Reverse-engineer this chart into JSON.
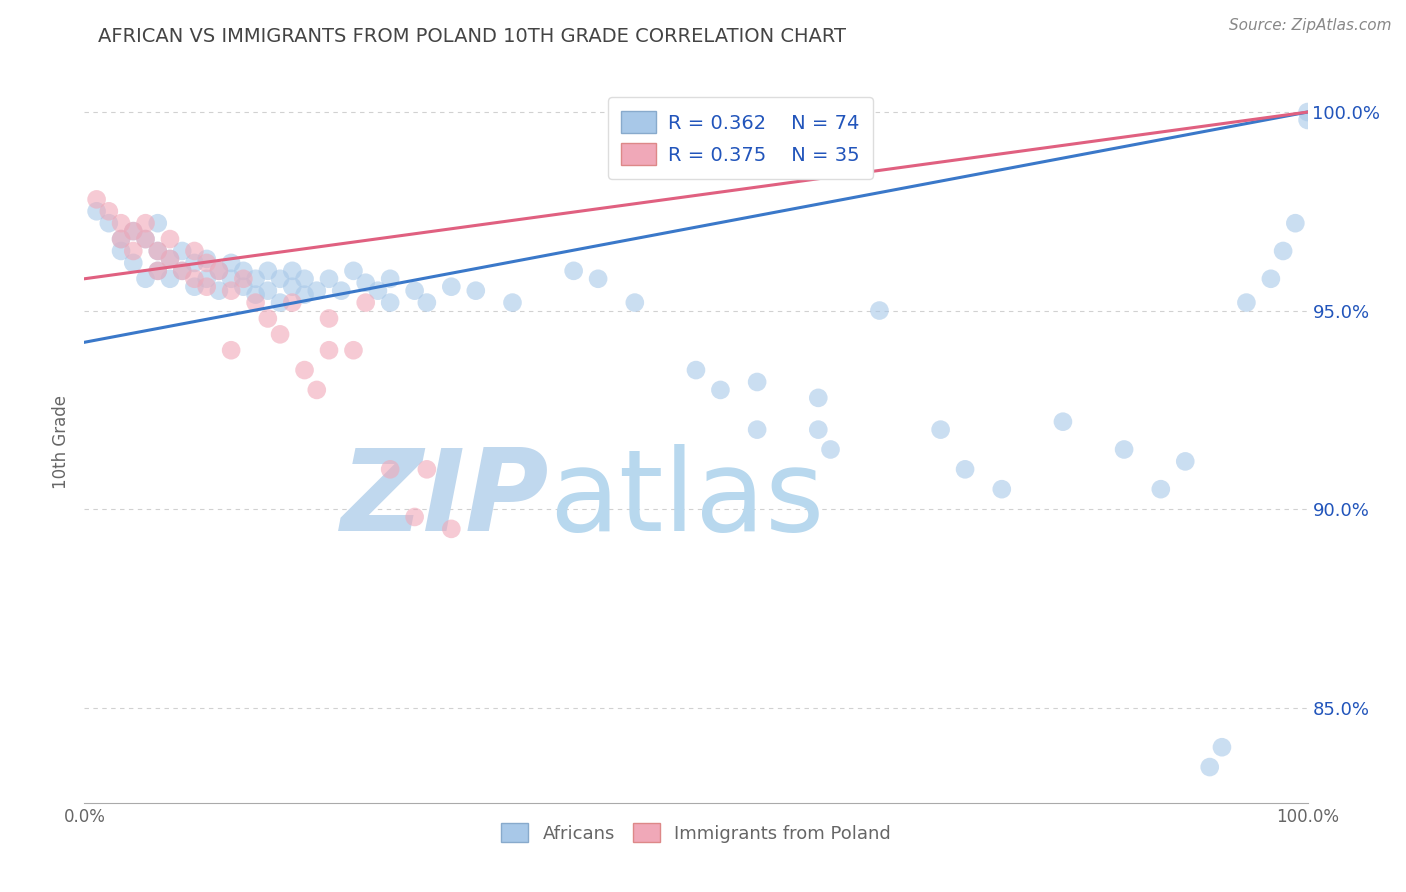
{
  "title": "AFRICAN VS IMMIGRANTS FROM POLAND 10TH GRADE CORRELATION CHART",
  "source": "Source: ZipAtlas.com",
  "ylabel": "10th Grade",
  "watermark_zip": "ZIP",
  "watermark_atlas": "atlas",
  "legend_blue_r": "R = 0.362",
  "legend_blue_n": "N = 74",
  "legend_pink_r": "R = 0.375",
  "legend_pink_n": "N = 35",
  "xlim": [
    0.0,
    1.0
  ],
  "ylim": [
    0.826,
    1.008
  ],
  "yticks": [
    0.85,
    0.9,
    0.95,
    1.0
  ],
  "ytick_labels": [
    "85.0%",
    "90.0%",
    "95.0%",
    "100.0%"
  ],
  "xtick_labels": [
    "0.0%",
    "100.0%"
  ],
  "blue_scatter": [
    [
      0.01,
      0.975
    ],
    [
      0.02,
      0.972
    ],
    [
      0.03,
      0.968
    ],
    [
      0.03,
      0.965
    ],
    [
      0.04,
      0.97
    ],
    [
      0.04,
      0.962
    ],
    [
      0.05,
      0.968
    ],
    [
      0.05,
      0.958
    ],
    [
      0.06,
      0.965
    ],
    [
      0.06,
      0.96
    ],
    [
      0.06,
      0.972
    ],
    [
      0.07,
      0.963
    ],
    [
      0.07,
      0.958
    ],
    [
      0.08,
      0.965
    ],
    [
      0.08,
      0.96
    ],
    [
      0.09,
      0.962
    ],
    [
      0.09,
      0.956
    ],
    [
      0.1,
      0.963
    ],
    [
      0.1,
      0.958
    ],
    [
      0.11,
      0.96
    ],
    [
      0.11,
      0.955
    ],
    [
      0.12,
      0.962
    ],
    [
      0.12,
      0.958
    ],
    [
      0.13,
      0.96
    ],
    [
      0.13,
      0.956
    ],
    [
      0.14,
      0.958
    ],
    [
      0.14,
      0.954
    ],
    [
      0.15,
      0.96
    ],
    [
      0.15,
      0.955
    ],
    [
      0.16,
      0.958
    ],
    [
      0.16,
      0.952
    ],
    [
      0.17,
      0.96
    ],
    [
      0.17,
      0.956
    ],
    [
      0.18,
      0.958
    ],
    [
      0.18,
      0.954
    ],
    [
      0.19,
      0.955
    ],
    [
      0.2,
      0.958
    ],
    [
      0.21,
      0.955
    ],
    [
      0.22,
      0.96
    ],
    [
      0.23,
      0.957
    ],
    [
      0.24,
      0.955
    ],
    [
      0.25,
      0.958
    ],
    [
      0.25,
      0.952
    ],
    [
      0.27,
      0.955
    ],
    [
      0.28,
      0.952
    ],
    [
      0.3,
      0.956
    ],
    [
      0.32,
      0.955
    ],
    [
      0.35,
      0.952
    ],
    [
      0.4,
      0.96
    ],
    [
      0.42,
      0.958
    ],
    [
      0.45,
      0.952
    ],
    [
      0.5,
      0.935
    ],
    [
      0.52,
      0.93
    ],
    [
      0.55,
      0.92
    ],
    [
      0.55,
      0.932
    ],
    [
      0.6,
      0.92
    ],
    [
      0.6,
      0.928
    ],
    [
      0.61,
      0.915
    ],
    [
      0.65,
      0.95
    ],
    [
      0.7,
      0.92
    ],
    [
      0.72,
      0.91
    ],
    [
      0.75,
      0.905
    ],
    [
      0.8,
      0.922
    ],
    [
      0.85,
      0.915
    ],
    [
      0.88,
      0.905
    ],
    [
      0.9,
      0.912
    ],
    [
      0.92,
      0.835
    ],
    [
      0.93,
      0.84
    ],
    [
      0.95,
      0.952
    ],
    [
      0.97,
      0.958
    ],
    [
      0.98,
      0.965
    ],
    [
      0.99,
      0.972
    ],
    [
      1.0,
      0.998
    ],
    [
      1.0,
      1.0
    ]
  ],
  "pink_scatter": [
    [
      0.01,
      0.978
    ],
    [
      0.02,
      0.975
    ],
    [
      0.03,
      0.972
    ],
    [
      0.03,
      0.968
    ],
    [
      0.04,
      0.97
    ],
    [
      0.04,
      0.965
    ],
    [
      0.05,
      0.968
    ],
    [
      0.05,
      0.972
    ],
    [
      0.06,
      0.965
    ],
    [
      0.06,
      0.96
    ],
    [
      0.07,
      0.968
    ],
    [
      0.07,
      0.963
    ],
    [
      0.08,
      0.96
    ],
    [
      0.09,
      0.965
    ],
    [
      0.09,
      0.958
    ],
    [
      0.1,
      0.962
    ],
    [
      0.1,
      0.956
    ],
    [
      0.11,
      0.96
    ],
    [
      0.12,
      0.94
    ],
    [
      0.12,
      0.955
    ],
    [
      0.13,
      0.958
    ],
    [
      0.14,
      0.952
    ],
    [
      0.15,
      0.948
    ],
    [
      0.16,
      0.944
    ],
    [
      0.17,
      0.952
    ],
    [
      0.18,
      0.935
    ],
    [
      0.19,
      0.93
    ],
    [
      0.2,
      0.948
    ],
    [
      0.2,
      0.94
    ],
    [
      0.22,
      0.94
    ],
    [
      0.23,
      0.952
    ],
    [
      0.25,
      0.91
    ],
    [
      0.27,
      0.898
    ],
    [
      0.28,
      0.91
    ],
    [
      0.3,
      0.895
    ]
  ],
  "blue_line": [
    [
      0.0,
      0.942
    ],
    [
      1.0,
      1.0
    ]
  ],
  "pink_line": [
    [
      0.0,
      0.958
    ],
    [
      1.0,
      1.0
    ]
  ],
  "blue_color": "#a8c8e8",
  "pink_color": "#f0a8b8",
  "blue_line_color": "#3a78c9",
  "pink_line_color": "#e06080",
  "title_color": "#444444",
  "axis_color": "#666666",
  "legend_text_color": "#2255bb",
  "grid_color": "#cccccc",
  "watermark_color_zip": "#c0d8ee",
  "watermark_color_atlas": "#b8d8ee",
  "background_color": "#ffffff"
}
